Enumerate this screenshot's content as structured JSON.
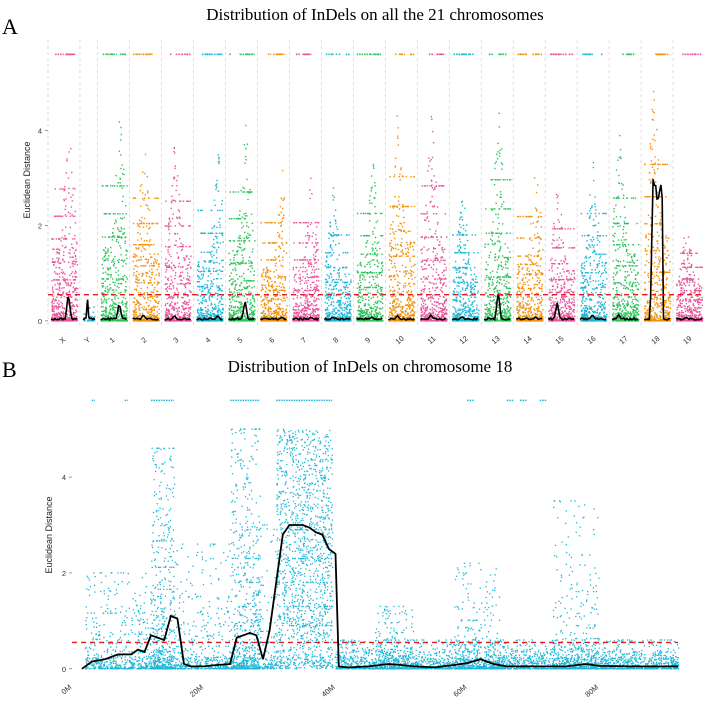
{
  "panels": {
    "a_letter": "A",
    "b_letter": "B"
  },
  "colors": {
    "pink": "#e8559b",
    "blue": "#1fb6d6",
    "green": "#2ec25a",
    "orange": "#f0900c",
    "threshold": "#e11c1c",
    "fit": "#000000",
    "vgrid": "#c8c8c8"
  },
  "chart_data": [
    {
      "type": "scatter",
      "title": "Distribution of InDels on all the 21 chromosomes",
      "xlabel": "",
      "ylabel": "Euclidean Distance",
      "categories": [
        "X",
        "Y",
        "1",
        "2",
        "3",
        "4",
        "5",
        "6",
        "7",
        "8",
        "9",
        "10",
        "11",
        "12",
        "13",
        "14",
        "15",
        "16",
        "17",
        "18",
        "19"
      ],
      "chrom_colors": [
        "pink",
        "blue",
        "green",
        "orange",
        "pink",
        "blue",
        "green",
        "orange",
        "pink",
        "blue",
        "green",
        "orange",
        "pink",
        "blue",
        "green",
        "orange",
        "pink",
        "blue",
        "green",
        "orange",
        "pink"
      ],
      "yticks": [
        0,
        2,
        4
      ],
      "ylim": [
        -0.15,
        5.9
      ],
      "threshold": 0.55,
      "peak_max": [
        4.3,
        0.45,
        4.4,
        4.0,
        3.9,
        3.6,
        4.2,
        3.2,
        3.2,
        2.8,
        3.5,
        4.7,
        4.4,
        2.8,
        4.6,
        3.4,
        3.0,
        3.5,
        4.0,
        5.1,
        2.2
      ],
      "fit_peak": [
        0.55,
        0.45,
        0.35,
        0.1,
        0.08,
        0.08,
        0.4,
        0.05,
        0.05,
        0.05,
        0.05,
        0.08,
        0.1,
        0.06,
        0.6,
        0.05,
        0.35,
        0.1,
        0.1,
        3.0,
        0.05
      ]
    },
    {
      "type": "scatter",
      "title": "Distribution of InDels on chromosome 18",
      "xlabel": "",
      "ylabel": "Euclidean Distance",
      "xticks": [
        "0M",
        "20M",
        "40M",
        "60M",
        "80M"
      ],
      "xtick_values": [
        0,
        20,
        40,
        60,
        80
      ],
      "xlim": [
        0,
        92
      ],
      "yticks": [
        0,
        2,
        4
      ],
      "ylim": [
        -0.15,
        5.9
      ],
      "threshold": 0.55,
      "fit_line": {
        "x": [
          1.5,
          3,
          5,
          7,
          9,
          10,
          11,
          12,
          13,
          14,
          15,
          16,
          17,
          18,
          19,
          20,
          22,
          24,
          25,
          26,
          27,
          28,
          29,
          30,
          31,
          32,
          33,
          34,
          35,
          36,
          37,
          38,
          39,
          40,
          40.5,
          42,
          45,
          48,
          50,
          52,
          55,
          58,
          60,
          62,
          64,
          66,
          70,
          75,
          78,
          80,
          85,
          90,
          92
        ],
        "y": [
          0,
          0.15,
          0.2,
          0.3,
          0.3,
          0.4,
          0.35,
          0.7,
          0.65,
          0.6,
          1.1,
          1.05,
          0.1,
          0.05,
          0.05,
          0.05,
          0.08,
          0.1,
          0.65,
          0.7,
          0.75,
          0.7,
          0.2,
          0.8,
          1.8,
          2.8,
          3.0,
          3.0,
          3.0,
          2.95,
          2.85,
          2.8,
          2.5,
          2.4,
          0.05,
          0.03,
          0.05,
          0.1,
          0.08,
          0.05,
          0.03,
          0.08,
          0.12,
          0.2,
          0.1,
          0.05,
          0.05,
          0.05,
          0.1,
          0.06,
          0.05,
          0.05,
          0.05
        ]
      },
      "density_regions": [
        {
          "from": 2,
          "to": 12,
          "max": 2.0
        },
        {
          "from": 12,
          "to": 15.5,
          "max": 4.6
        },
        {
          "from": 15.5,
          "to": 24,
          "max": 2.6
        },
        {
          "from": 24,
          "to": 28.5,
          "max": 5.0
        },
        {
          "from": 28.5,
          "to": 31,
          "max": 3.0
        },
        {
          "from": 31,
          "to": 39.5,
          "max": 5.0
        },
        {
          "from": 40,
          "to": 92,
          "max": 0.6
        },
        {
          "from": 46,
          "to": 52,
          "max": 1.3
        },
        {
          "from": 58,
          "to": 65,
          "max": 2.2
        },
        {
          "from": 73,
          "to": 80,
          "max": 3.5
        }
      ]
    }
  ]
}
